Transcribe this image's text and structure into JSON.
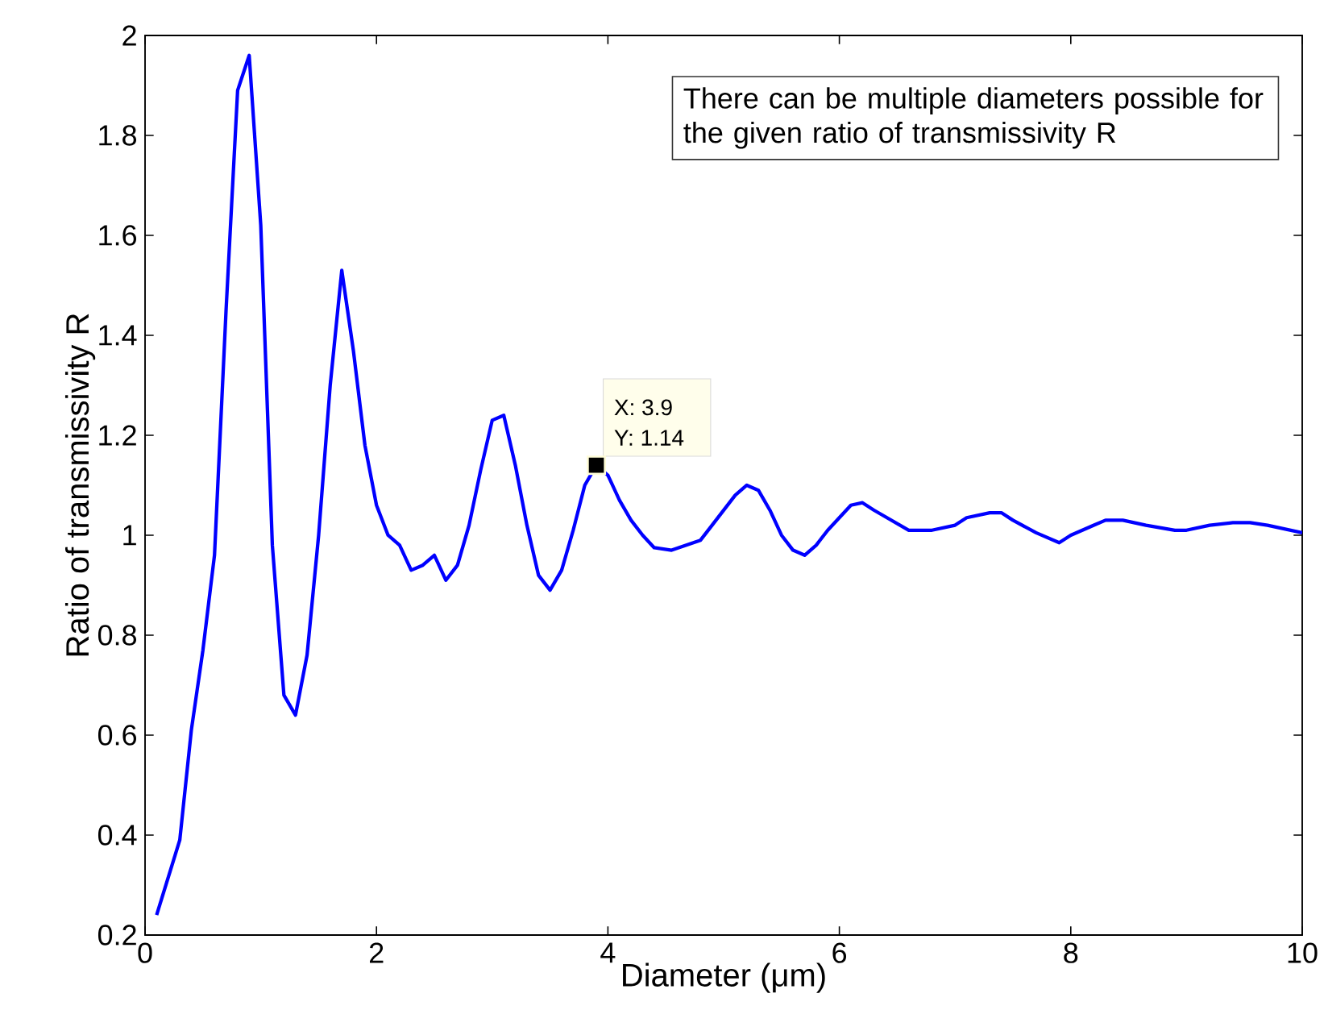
{
  "chart_data": {
    "type": "line",
    "xlabel": "Diameter (μm)",
    "ylabel": "Ratio of transmissivity R",
    "xlim": [
      0,
      10
    ],
    "ylim": [
      0.2,
      2
    ],
    "xticks": [
      0,
      2,
      4,
      6,
      8,
      10
    ],
    "yticks": [
      0.2,
      0.4,
      0.6,
      0.8,
      1,
      1.2,
      1.4,
      1.6,
      1.8,
      2
    ],
    "grid": false,
    "legend": false,
    "marker": "none",
    "line_style": "solid",
    "annotations": [
      "There can be multiple diameters possible for the given ratio of transmissivity R",
      {
        "text": "X: 3.9",
        "x": 3.9,
        "y": 1.14
      },
      {
        "text": "Y: 1.14",
        "x": 3.9,
        "y": 1.14
      }
    ],
    "series": [
      {
        "color": "#0000ff",
        "x": [
          0.1,
          0.3,
          0.4,
          0.5,
          0.6,
          0.7,
          0.8,
          0.9,
          1.0,
          1.1,
          1.2,
          1.3,
          1.4,
          1.5,
          1.6,
          1.7,
          1.8,
          1.9,
          2.0,
          2.1,
          2.2,
          2.3,
          2.4,
          2.5,
          2.6,
          2.7,
          2.8,
          2.9,
          3.0,
          3.1,
          3.2,
          3.3,
          3.4,
          3.5,
          3.6,
          3.7,
          3.8,
          3.9,
          4.0,
          4.1,
          4.2,
          4.3,
          4.4,
          4.55,
          4.8,
          4.9,
          5.1,
          5.2,
          5.3,
          5.4,
          5.5,
          5.6,
          5.7,
          5.8,
          5.9,
          6.1,
          6.2,
          6.3,
          6.45,
          6.6,
          6.8,
          7.0,
          7.1,
          7.3,
          7.4,
          7.5,
          7.7,
          7.9,
          8.0,
          8.2,
          8.3,
          8.45,
          8.65,
          8.9,
          9.0,
          9.2,
          9.4,
          9.55,
          9.7,
          10.0
        ],
        "values": [
          0.24,
          0.39,
          0.61,
          0.77,
          0.96,
          1.45,
          1.89,
          1.96,
          1.62,
          0.98,
          0.68,
          0.64,
          0.76,
          1.0,
          1.3,
          1.53,
          1.37,
          1.18,
          1.06,
          1.0,
          0.98,
          0.93,
          0.94,
          0.96,
          0.91,
          0.94,
          1.02,
          1.13,
          1.23,
          1.24,
          1.14,
          1.02,
          0.92,
          0.89,
          0.93,
          1.01,
          1.1,
          1.14,
          1.12,
          1.07,
          1.03,
          1.0,
          0.975,
          0.97,
          0.99,
          1.02,
          1.08,
          1.1,
          1.09,
          1.05,
          1.0,
          0.97,
          0.96,
          0.98,
          1.01,
          1.06,
          1.065,
          1.05,
          1.03,
          1.01,
          1.01,
          1.02,
          1.035,
          1.045,
          1.045,
          1.03,
          1.005,
          0.985,
          1.0,
          1.02,
          1.03,
          1.03,
          1.02,
          1.01,
          1.01,
          1.02,
          1.025,
          1.025,
          1.02,
          1.005
        ]
      }
    ]
  }
}
